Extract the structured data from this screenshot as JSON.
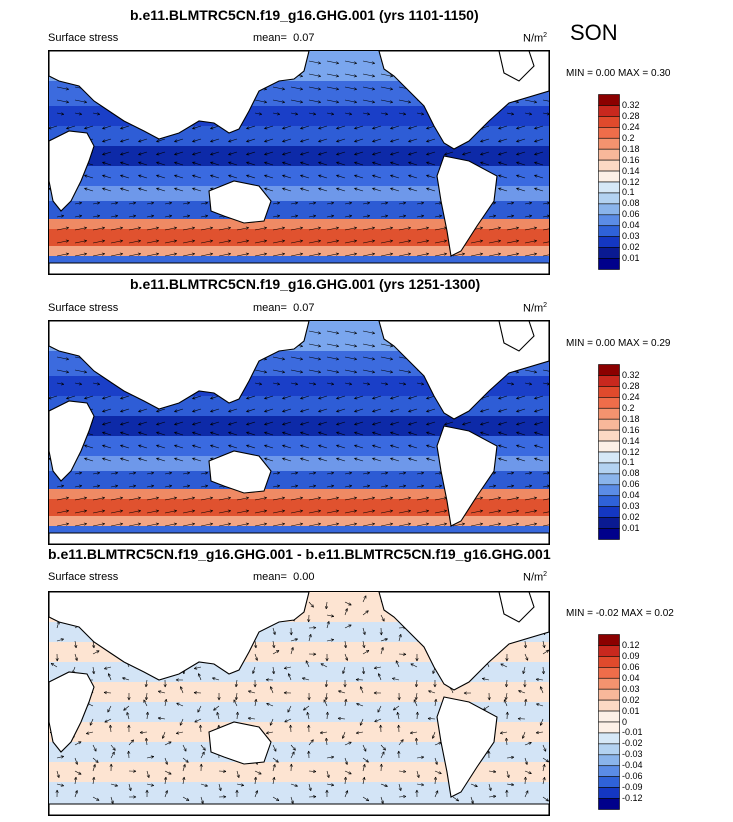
{
  "season": "SON",
  "panels": [
    {
      "title": "b.e11.BLMTRC5CN.f19_g16.GHG.001 (yrs 1101-1150)",
      "left_label": "Surface stress",
      "mean_label": "mean=",
      "mean_value": "0.07",
      "units": "N/m",
      "units_sup": "2",
      "min_max": "MIN =  0.00 MAX =  0.30",
      "colorbar": [
        "0.32",
        "0.28",
        "0.24",
        "0.2",
        "0.18",
        "0.16",
        "0.14",
        "0.12",
        "0.1",
        "0.08",
        "0.06",
        "0.04",
        "0.03",
        "0.02",
        "0.01"
      ],
      "colorbar_colors": [
        "#8b0000",
        "#c8281e",
        "#e04a2c",
        "#ef6d4a",
        "#f4936f",
        "#f8b89a",
        "#fbd9c4",
        "#fdf0e6",
        "#d6e8f7",
        "#b3d2f1",
        "#8ab4eb",
        "#5b8ce6",
        "#2f62d8",
        "#1437c2",
        "#0a1a92",
        "#00008b"
      ]
    },
    {
      "title": "b.e11.BLMTRC5CN.f19_g16.GHG.001 (yrs 1251-1300)",
      "left_label": "Surface stress",
      "mean_label": "mean=",
      "mean_value": "0.07",
      "units": "N/m",
      "units_sup": "2",
      "min_max": "MIN =  0.00 MAX =  0.29",
      "colorbar": [
        "0.32",
        "0.28",
        "0.24",
        "0.2",
        "0.18",
        "0.16",
        "0.14",
        "0.12",
        "0.1",
        "0.08",
        "0.06",
        "0.04",
        "0.03",
        "0.02",
        "0.01"
      ],
      "colorbar_colors": [
        "#8b0000",
        "#c8281e",
        "#e04a2c",
        "#ef6d4a",
        "#f4936f",
        "#f8b89a",
        "#fbd9c4",
        "#fdf0e6",
        "#d6e8f7",
        "#b3d2f1",
        "#8ab4eb",
        "#5b8ce6",
        "#2f62d8",
        "#1437c2",
        "#0a1a92",
        "#00008b"
      ]
    },
    {
      "title": "b.e11.BLMTRC5CN.f19_g16.GHG.001 - b.e11.BLMTRC5CN.f19_g16.GHG.001",
      "left_label": "Surface stress",
      "mean_label": "mean=",
      "mean_value": "0.00",
      "units": "N/m",
      "units_sup": "2",
      "min_max": "MIN = -0.02 MAX =  0.02",
      "colorbar": [
        "0.12",
        "0.09",
        "0.06",
        "0.04",
        "0.03",
        "0.02",
        "0.01",
        "0",
        "-0.01",
        "-0.02",
        "-0.03",
        "-0.04",
        "-0.06",
        "-0.09",
        "-0.12"
      ],
      "colorbar_colors": [
        "#8b0000",
        "#c8281e",
        "#e04a2c",
        "#ef6d4a",
        "#f4936f",
        "#f8b89a",
        "#fbd9c4",
        "#fdf0e6",
        "#fdf0e6",
        "#d6e8f7",
        "#b3d2f1",
        "#8ab4eb",
        "#5b8ce6",
        "#2f62d8",
        "#1437c2",
        "#00008b"
      ]
    }
  ]
}
